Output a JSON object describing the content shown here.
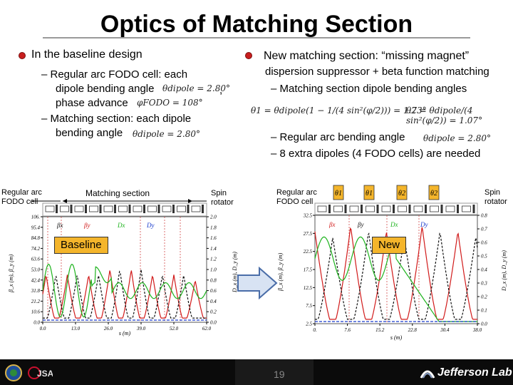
{
  "title": "Optics of Matching Section",
  "left": {
    "heading": "In the baseline design",
    "lines": [
      "– Regular arc FODO cell: each",
      "dipole bending angle",
      "phase advance",
      "– Matching section: each dipole",
      "bending angle"
    ],
    "eq_theta1": "θdipole = 2.80°",
    "eq_phi": "φFODO = 108°",
    "eq_theta2": "θdipole = 2.80°",
    "comma": ","
  },
  "right": {
    "heading_main": "New matching section: ",
    "heading_quote": "“missing magnet”",
    "line1": "dispersion suppressor + beta function matching",
    "line2": "– Matching section dipole bending angles",
    "eq1": "θ1 = θdipole(1 − 1/(4 sin²(φ/2))) = 1.73°",
    "eq2": "θ2 = θdipole/(4 sin²(φ/2)) = 1.07°",
    "line3": "– Regular arc bending angle",
    "eq3": "θdipole = 2.80°",
    "line4": "– 8 extra dipoles (4 FODO cells) are needed"
  },
  "left_plot": {
    "label_left": [
      "Regular arc",
      "FODO cell"
    ],
    "label_mid": "Matching section",
    "label_right": [
      "Spin",
      "rotator"
    ],
    "box_label": "Baseline",
    "x_ticks": [
      "0.0",
      "13.0",
      "26.0",
      "39.0",
      "52.0",
      "62.0"
    ],
    "y_left_ticks": [
      "106.",
      "95.4",
      "84.8",
      "74.2",
      "63.6",
      "53.0",
      "42.4",
      "31.8",
      "21.2",
      "10.6",
      "0.0"
    ],
    "y_right_ticks": [
      "2.0",
      "1.8",
      "1.6",
      "1.4",
      "1.2",
      "1.0",
      "0.8",
      "0.6",
      "0.4",
      "0.2",
      "0.0"
    ],
    "y_left_label": "β_x (m), β_y (m)",
    "y_right_label": "D_x (m), D_y (m)",
    "x_label": "s (m)",
    "legend": [
      "βx",
      "βy",
      "Dx",
      "Dy"
    ]
  },
  "right_plot": {
    "label_left": [
      "Regular arc",
      "FODO cell"
    ],
    "label_right": [
      "Spin",
      "rotator"
    ],
    "theta_boxes": [
      "θ1",
      "θ1",
      "θ2",
      "θ2"
    ],
    "box_label": "New",
    "x_ticks": [
      "0.",
      "7.6",
      "15.2",
      "22.8",
      "30.4",
      "38.0"
    ],
    "y_left_ticks": [
      "32.5",
      "27.5",
      "22.5",
      "17.5",
      "12.5",
      "7.5",
      "2.5"
    ],
    "y_right_ticks": [
      "0.8",
      "0.7",
      "0.6",
      "0.5",
      "0.4",
      "0.3",
      "0.2",
      "0.1",
      "0.0"
    ],
    "y_left_label": "β_x (m), β_y (m)",
    "y_right_label": "D_x (m), D_y (m)",
    "x_label": "s (m)",
    "legend": [
      "βx",
      "βy",
      "Dx",
      "Dy"
    ]
  },
  "footer": {
    "page": "19",
    "logo_text": "Jefferson Lab"
  },
  "colors": {
    "bx": "#d11a1a",
    "by": "#111111",
    "dx": "#1db31d",
    "dy": "#1a3ccc",
    "box": "#f4b52b",
    "arrow_fill": "#d8e3f3",
    "arrow_stroke": "#4a6da8"
  }
}
